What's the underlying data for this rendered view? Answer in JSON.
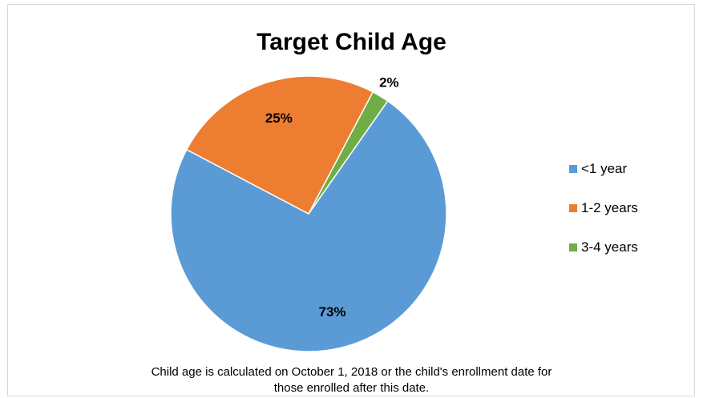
{
  "chart_data": {
    "type": "pie",
    "title": "Target Child Age",
    "categories": [
      "<1 year",
      "1-2 years",
      "3-4 years"
    ],
    "values": [
      73,
      25,
      2
    ],
    "data_labels": [
      "73%",
      "25%",
      "2%"
    ],
    "colors": [
      "#5b9bd5",
      "#ed7d31",
      "#70ad47"
    ],
    "legend": {
      "placement": "right",
      "entries": [
        "<1 year",
        "1-2 years",
        "3-4 years"
      ]
    },
    "footnote": [
      "Child age is calculated on October 1, 2018 or the child's enrollment date for",
      "those enrolled after this date."
    ]
  }
}
